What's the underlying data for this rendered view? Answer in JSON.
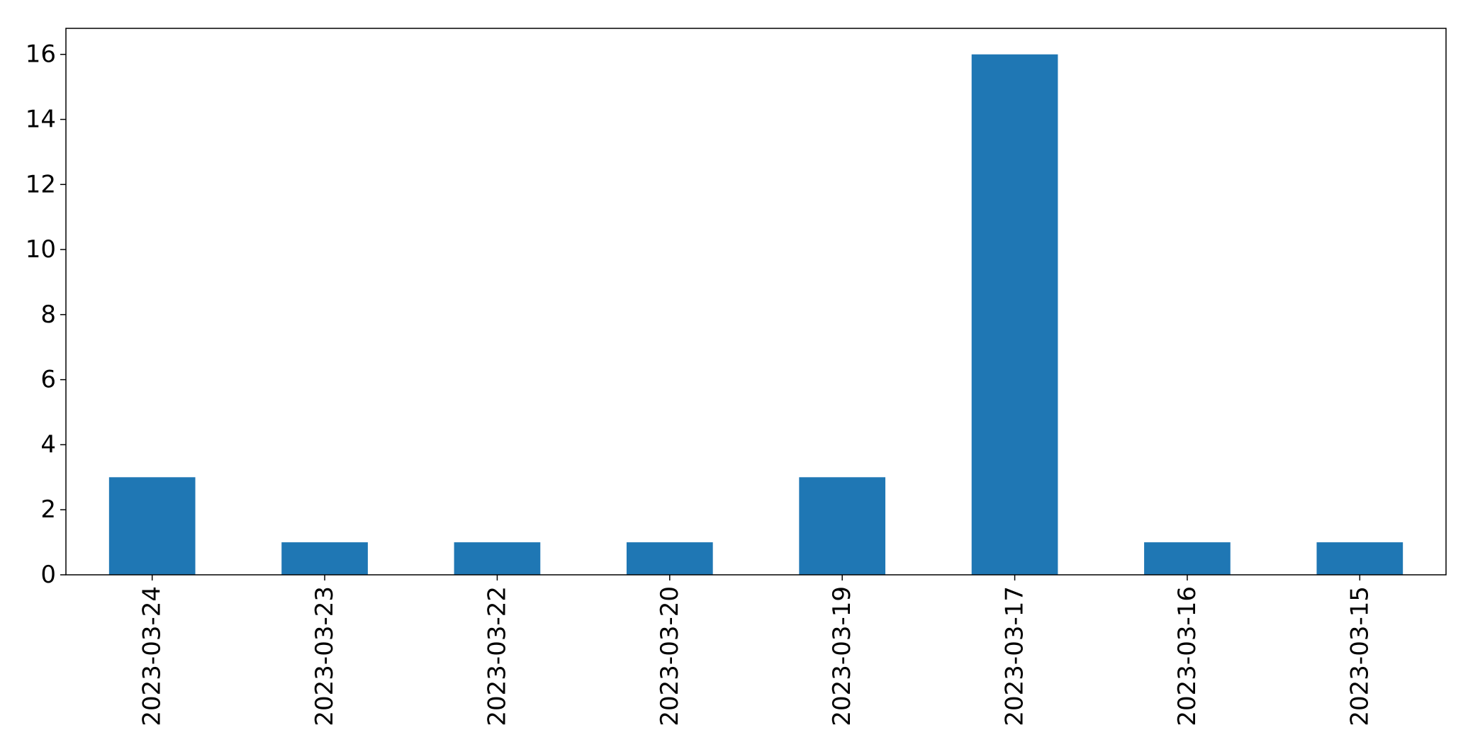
{
  "chart_data": {
    "type": "bar",
    "title": "",
    "xlabel": "",
    "ylabel": "",
    "categories": [
      "2023-03-24",
      "2023-03-23",
      "2023-03-22",
      "2023-03-20",
      "2023-03-19",
      "2023-03-17",
      "2023-03-16",
      "2023-03-15"
    ],
    "values": [
      3,
      1,
      1,
      1,
      3,
      16,
      1,
      1
    ],
    "ylim": [
      0,
      16.8
    ],
    "yticks": [
      0,
      2,
      4,
      6,
      8,
      10,
      12,
      14,
      16
    ],
    "grid": false,
    "legend": "none",
    "bar_color": "#1f77b4",
    "x_tick_rotation": "vertical"
  }
}
